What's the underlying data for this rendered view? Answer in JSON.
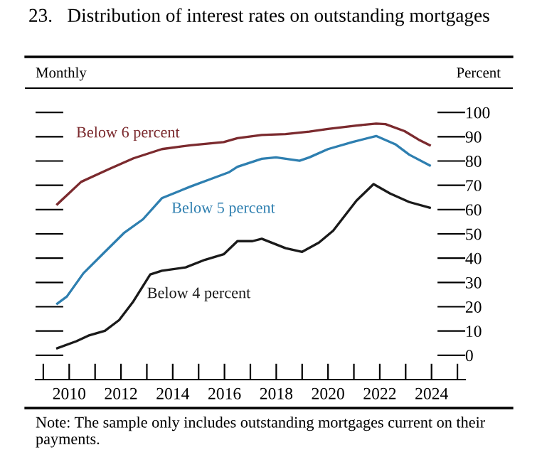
{
  "chart_data": {
    "type": "line",
    "title": "23.   Distribution of interest rates on outstanding mortgages",
    "xlabel": "Monthly",
    "ylabel": "Percent",
    "series": [
      {
        "name": "Below 6 percent",
        "color": "#7b2a2e",
        "x": [
          2009.54,
          2010.46,
          2011.56,
          2012.48,
          2013.58,
          2014.69,
          2015.97,
          2016.5,
          2017.44,
          2018.36,
          2019.28,
          2020.0,
          2021.1,
          2021.86,
          2022.22,
          2022.96,
          2023.5,
          2023.93
        ],
        "values": [
          62.2,
          71.4,
          76.8,
          81.1,
          84.9,
          86.5,
          87.8,
          89.4,
          90.7,
          91.1,
          92.1,
          93.2,
          94.6,
          95.4,
          95.2,
          92.3,
          88.8,
          86.5
        ]
      },
      {
        "name": "Below 5 percent",
        "color": "#2e7fb0",
        "x": [
          2009.54,
          2009.91,
          2010.55,
          2011.38,
          2012.11,
          2012.85,
          2013.58,
          2014.69,
          2015.42,
          2016.16,
          2016.5,
          2017.44,
          2017.99,
          2018.9,
          2019.28,
          2020.0,
          2020.94,
          2021.86,
          2022.6,
          2023.14,
          2023.93
        ],
        "values": [
          21.3,
          24.2,
          33.8,
          42.6,
          50.3,
          56.0,
          64.7,
          69.5,
          72.4,
          75.3,
          77.6,
          80.9,
          81.5,
          80.1,
          81.5,
          84.9,
          87.8,
          90.3,
          86.9,
          82.6,
          78.2
        ]
      },
      {
        "name": "Below 4 percent",
        "color": "#1a1a1a",
        "x": [
          2009.54,
          2010.28,
          2010.74,
          2011.38,
          2011.93,
          2012.48,
          2013.13,
          2013.58,
          2014.5,
          2015.24,
          2015.97,
          2016.5,
          2017.08,
          2017.44,
          2018.36,
          2019.0,
          2019.65,
          2020.2,
          2021.1,
          2021.76,
          2022.4,
          2023.14,
          2023.93
        ],
        "values": [
          2.9,
          5.8,
          8.1,
          10.1,
          14.5,
          22.2,
          33.3,
          34.8,
          36.2,
          39.3,
          41.6,
          47.0,
          47.0,
          48.0,
          44.1,
          42.6,
          46.4,
          51.3,
          63.7,
          70.5,
          66.6,
          63.1,
          60.8
        ]
      }
    ],
    "xlim": [
      2008.7,
      2025.3
    ],
    "xticks": [
      {
        "value": 2009,
        "label": null
      },
      2010,
      {
        "value": 2011,
        "label": null
      },
      2012,
      {
        "value": 2013,
        "label": null
      },
      2014,
      {
        "value": 2015,
        "label": null
      },
      2016,
      {
        "value": 2017,
        "label": null
      },
      2018,
      {
        "value": 2019,
        "label": null
      },
      2020,
      {
        "value": 2021,
        "label": null
      },
      2022,
      {
        "value": 2023,
        "label": null
      },
      2024,
      {
        "value": 2025,
        "label": null
      }
    ],
    "ylim": [
      -10,
      110
    ],
    "yticks": [
      0,
      10,
      20,
      30,
      40,
      50,
      60,
      70,
      80,
      90,
      100
    ],
    "grid": false,
    "legend": false,
    "line_style": "solid",
    "marker": "none",
    "annotations": [
      "Note: The sample only includes outstanding mortgages current on their payments."
    ]
  }
}
